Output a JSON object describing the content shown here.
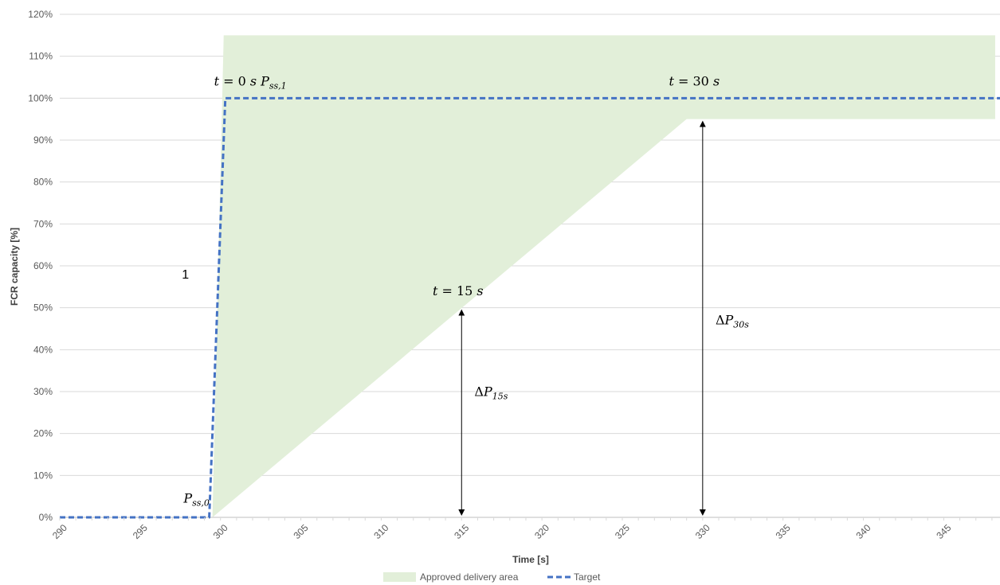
{
  "chart_data": {
    "type": "area",
    "xlabel": "Time [s]",
    "ylabel": "FCR capacity [%]",
    "xlim": [
      290,
      348.5
    ],
    "ylim": [
      0,
      120
    ],
    "x_ticks": [
      "290",
      "295",
      "300",
      "305",
      "310",
      "315",
      "320",
      "325",
      "330",
      "335",
      "340",
      "345"
    ],
    "y_ticks": [
      "0%",
      "10%",
      "20%",
      "30%",
      "40%",
      "50%",
      "60%",
      "70%",
      "80%",
      "90%",
      "100%",
      "110%",
      "120%"
    ],
    "grid": "horizontal",
    "legend_position": "bottom",
    "series": [
      {
        "name": "Approved delivery area",
        "type": "area",
        "color": "#e2efd9",
        "upper": [
          [
            300.2,
            115
          ],
          [
            348.2,
            115
          ]
        ],
        "lower": [
          [
            299.5,
            0
          ],
          [
            329,
            95
          ],
          [
            348.2,
            95
          ]
        ]
      },
      {
        "name": "Target",
        "type": "line",
        "style": "dashed",
        "color": "#4472c4",
        "points": [
          [
            290,
            0
          ],
          [
            299.3,
            0
          ],
          [
            300.3,
            100
          ],
          [
            348.5,
            100
          ]
        ]
      }
    ],
    "annotations": [
      {
        "id": "t0",
        "var": "t",
        "eq": " = 0 ",
        "unit": "s",
        "x": 299.6,
        "y": 103
      },
      {
        "id": "pss1",
        "var": "P",
        "sub": "ss,1",
        "x": 302.5,
        "y": 103
      },
      {
        "id": "t30",
        "var": "t",
        "eq": " = 30 ",
        "unit": "s",
        "x": 327.9,
        "y": 103
      },
      {
        "id": "t15",
        "var": "t",
        "eq": " = 15 ",
        "unit": "s",
        "x": 313.2,
        "y": 53
      },
      {
        "id": "pss0",
        "var": "P",
        "sub": "ss,0",
        "x": 297.7,
        "y": 3.5
      },
      {
        "id": "dp15",
        "delta": "Δ",
        "var": "P",
        "sub": "15s",
        "x": 315.8,
        "y": 29
      },
      {
        "id": "dp30",
        "delta": "Δ",
        "var": "P",
        "sub": "30s",
        "x": 330.8,
        "y": 46
      },
      {
        "id": "one",
        "plain": "1",
        "x": 297.6,
        "y": 57
      }
    ],
    "arrows": [
      {
        "id": "arrow-15s",
        "x": 315,
        "y1": 0,
        "y2": 50
      },
      {
        "id": "arrow-30s",
        "x": 330,
        "y1": 0,
        "y2": 95
      }
    ]
  }
}
